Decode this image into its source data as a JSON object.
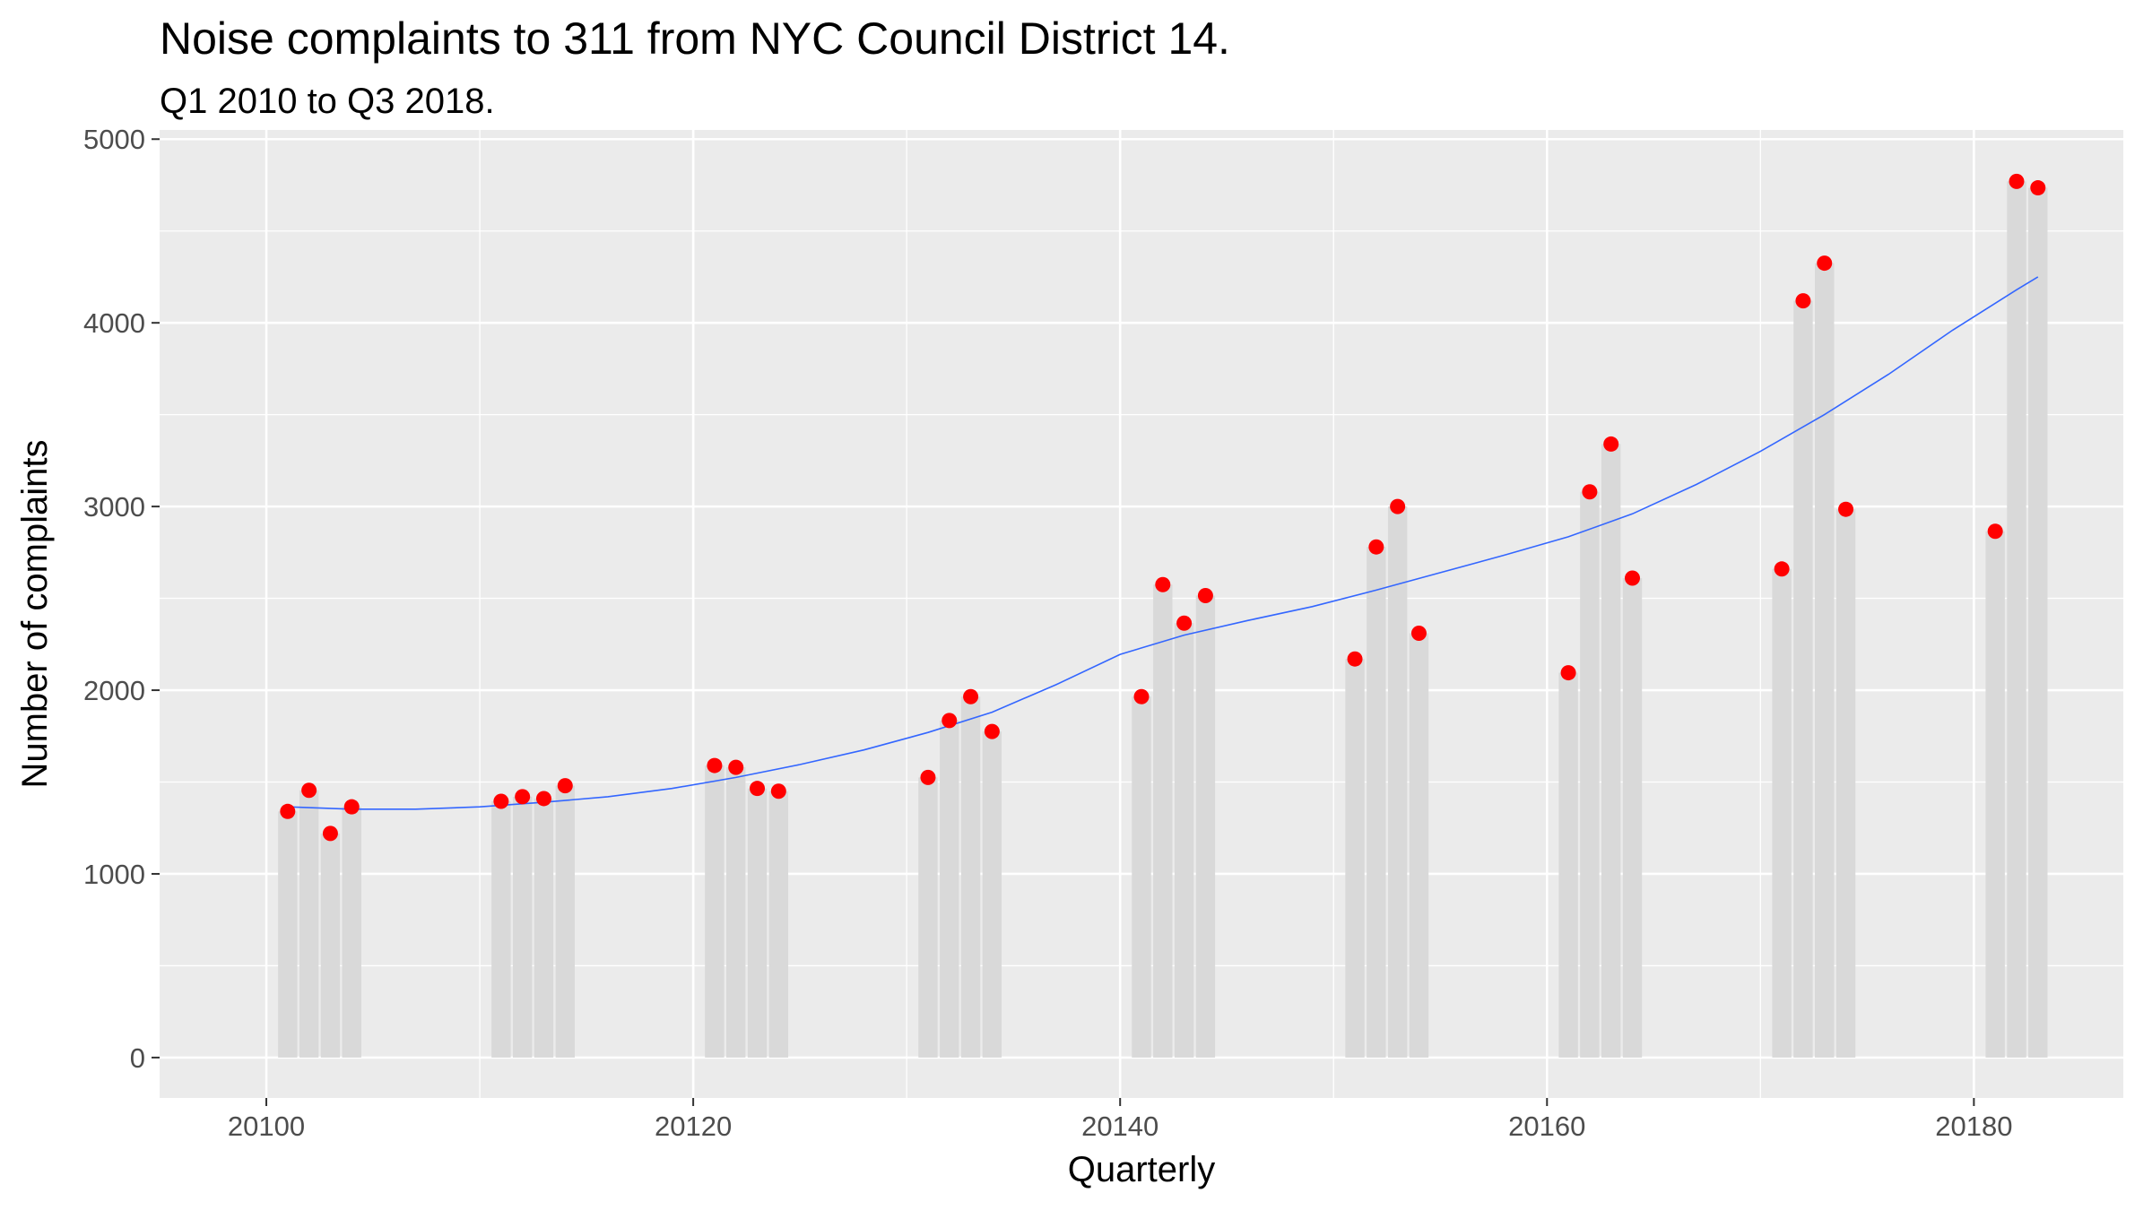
{
  "chart_data": {
    "type": "bar",
    "title": "Noise complaints to 311 from NYC Council District 14.",
    "subtitle": "Q1 2010 to Q3 2018.",
    "xlabel": "Quarterly",
    "ylabel": "Number of complaints",
    "xlim": [
      20095,
      20187
    ],
    "ylim": [
      -220,
      5050
    ],
    "x_ticks": [
      20100,
      20120,
      20140,
      20160,
      20180
    ],
    "x_tick_labels": [
      "20100",
      "20120",
      "20140",
      "20160",
      "20180"
    ],
    "y_ticks": [
      0,
      1000,
      2000,
      3000,
      4000,
      5000
    ],
    "y_tick_labels": [
      "0",
      "1000",
      "2000",
      "3000",
      "4000",
      "5000"
    ],
    "grid": true,
    "series": [
      {
        "x": [
          20101,
          20102,
          20103,
          20104,
          20111,
          20112,
          20113,
          20114,
          20121,
          20122,
          20123,
          20124,
          20131,
          20132,
          20133,
          20134,
          20141,
          20142,
          20143,
          20144,
          20151,
          20152,
          20153,
          20154,
          20161,
          20162,
          20163,
          20164,
          20171,
          20172,
          20173,
          20174,
          20181,
          20182,
          20183
        ],
        "values": [
          1340,
          1455,
          1220,
          1365,
          1395,
          1420,
          1410,
          1480,
          1590,
          1580,
          1465,
          1450,
          1525,
          1835,
          1965,
          1775,
          1965,
          2575,
          2365,
          2515,
          2170,
          2780,
          3000,
          2310,
          2095,
          3080,
          3340,
          2610,
          2660,
          4120,
          4325,
          2985,
          2865,
          4770,
          4735
        ]
      }
    ],
    "smooth_line": {
      "x": [
        20101,
        20104,
        20107,
        20110,
        20113,
        20116,
        20119,
        20122,
        20125,
        20128,
        20131,
        20134,
        20137,
        20140,
        20143,
        20146,
        20149,
        20152,
        20155,
        20158,
        20161,
        20164,
        20167,
        20170,
        20173,
        20176,
        20179,
        20182,
        20183
      ],
      "values": [
        1365,
        1352,
        1352,
        1365,
        1390,
        1420,
        1465,
        1525,
        1595,
        1675,
        1770,
        1880,
        2030,
        2195,
        2300,
        2380,
        2455,
        2545,
        2640,
        2735,
        2835,
        2960,
        3120,
        3300,
        3500,
        3720,
        3960,
        4180,
        4250
      ]
    },
    "colors": {
      "bar": "#d9d9d9",
      "point": "#ff0000",
      "line": "#3366ff",
      "panel": "#ebebeb",
      "grid": "#ffffff"
    }
  }
}
